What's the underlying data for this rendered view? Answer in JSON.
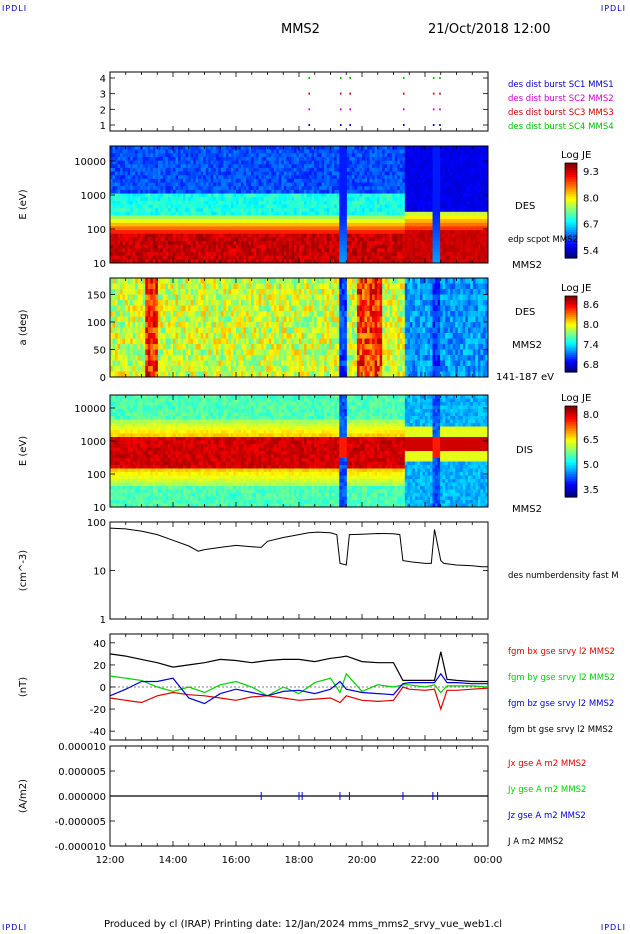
{
  "corners": {
    "tl": "IPDLI",
    "tr": "IPDLI",
    "bl": "IPDLI",
    "br": "IPDLI"
  },
  "header": {
    "spacecraft": "MMS2",
    "datetime": "21/Oct/2018 12:00"
  },
  "footer": "Produced by cl (IRAP)   Printing date: 12/Jan/2024   mms_mms2_srvy_vue_web1.cl",
  "colors": {
    "mms1": "#0000c8",
    "mms2": "#d000d0",
    "mms3": "#d00000",
    "mms4": "#00c000",
    "bx": "#e00000",
    "by": "#00d000",
    "bz": "#0000e0",
    "bt": "#000000"
  },
  "chart_data": [
    {
      "type": "scatter",
      "panel": "burst",
      "yticks": [
        "4",
        "3",
        "2",
        "1"
      ],
      "legend": [
        {
          "name": "des dist burst SC1 MMS1",
          "color": "#0000c8"
        },
        {
          "name": "des dist burst SC2 MMS2",
          "color": "#d000d0"
        },
        {
          "name": "des dist burst SC3 MMS3",
          "color": "#d00000"
        },
        {
          "name": "des dist burst SC4 MMS4",
          "color": "#00c000"
        }
      ],
      "x_hours": [
        18.3,
        19.3,
        19.6,
        21.3,
        22.25,
        22.45
      ],
      "levels": [
        4,
        3,
        2,
        1
      ]
    },
    {
      "type": "heatmap",
      "panel": "des_energy",
      "ylabel": "E (eV)",
      "yticks": [
        "10000",
        "1000",
        "100",
        "10"
      ],
      "colorbar": {
        "title": "Log JE",
        "ticks": [
          "9.3",
          "8.0",
          "6.7",
          "5.4"
        ]
      },
      "labels": [
        "DES",
        "edp scpot MMS2",
        "MMS2"
      ]
    },
    {
      "type": "heatmap",
      "panel": "des_pitch",
      "ylabel": "a (deg)",
      "yticks": [
        "150",
        "100",
        "50",
        "0"
      ],
      "colorbar": {
        "title": "Log JE",
        "ticks": [
          "8.6",
          "8.0",
          "7.4",
          "6.8"
        ]
      },
      "labels": [
        "DES",
        "MMS2",
        "141-187 eV"
      ]
    },
    {
      "type": "heatmap",
      "panel": "dis_energy",
      "ylabel": "E (eV)",
      "yticks": [
        "10000",
        "1000",
        "100",
        "10"
      ],
      "colorbar": {
        "title": "Log JE",
        "ticks": [
          "8.0",
          "6.5",
          "5.0",
          "3.5"
        ]
      },
      "labels": [
        "DIS",
        "MMS2"
      ]
    },
    {
      "type": "line",
      "panel": "density",
      "ylabel": "(cm^-3)",
      "yticks": [
        "100",
        "10",
        "1"
      ],
      "ylim": [
        1,
        100
      ],
      "legend": [
        {
          "name": "des numberdensity fast M",
          "color": "#000000"
        }
      ],
      "series": [
        {
          "x": [
            12,
            12.5,
            13,
            13.5,
            14,
            14.5,
            14.8,
            15,
            15.5,
            16,
            16.5,
            16.8,
            17,
            17.5,
            18,
            18.3,
            18.6,
            19,
            19.2,
            19.3,
            19.5,
            19.6,
            20,
            20.5,
            21,
            21.2,
            21.3,
            21.6,
            22,
            22.2,
            22.3,
            22.5,
            22.6,
            23,
            23.5,
            23.8,
            24
          ],
          "y": [
            75,
            72,
            65,
            55,
            42,
            32,
            25,
            27,
            30,
            33,
            31,
            30,
            40,
            48,
            55,
            60,
            62,
            60,
            55,
            14,
            13,
            55,
            56,
            58,
            57,
            55,
            16,
            15,
            14,
            14,
            70,
            16,
            14,
            13,
            12.5,
            12,
            12
          ]
        }
      ]
    },
    {
      "type": "line",
      "panel": "bfield",
      "ylabel": "(nT)",
      "yticks": [
        "40",
        "20",
        "0",
        "-20",
        "-40"
      ],
      "ylim": [
        -48,
        48
      ],
      "legend": [
        {
          "name": "fgm bx gse srvy l2 MMS2",
          "color": "#e00000"
        },
        {
          "name": "fgm by gse srvy l2 MMS2",
          "color": "#00d000"
        },
        {
          "name": "fgm bz gse srvy l2 MMS2",
          "color": "#0000e0"
        },
        {
          "name": "fgm bt gse srvy l2 MMS2",
          "color": "#000000"
        }
      ],
      "x": [
        12,
        12.5,
        13,
        13.5,
        14,
        14.5,
        15,
        15.5,
        16,
        16.5,
        17,
        17.5,
        18,
        18.5,
        19,
        19.3,
        19.5,
        20,
        20.5,
        21,
        21.3,
        21.5,
        22,
        22.3,
        22.5,
        22.7,
        23,
        23.5,
        24
      ],
      "series": [
        {
          "name": "bx",
          "values": [
            -10,
            -12,
            -14,
            -8,
            -5,
            -7,
            -8,
            -10,
            -12,
            -9,
            -8,
            -10,
            -12,
            -11,
            -10,
            -14,
            -8,
            -12,
            -13,
            -12,
            0,
            -2,
            -3,
            -2,
            -20,
            -3,
            -3,
            -2,
            -1
          ]
        },
        {
          "name": "by",
          "values": [
            10,
            8,
            6,
            0,
            -4,
            0,
            -5,
            2,
            5,
            0,
            -8,
            0,
            -6,
            4,
            8,
            -5,
            12,
            -4,
            2,
            0,
            2,
            2,
            0,
            2,
            -5,
            1,
            1,
            1,
            0
          ]
        },
        {
          "name": "bz",
          "values": [
            -8,
            -2,
            5,
            5,
            8,
            -10,
            -15,
            -6,
            -2,
            -5,
            -8,
            -4,
            -3,
            -6,
            -2,
            5,
            -2,
            -5,
            -6,
            -7,
            3,
            4,
            4,
            4,
            12,
            4,
            4,
            3,
            3
          ]
        },
        {
          "name": "bt",
          "values": [
            30,
            28,
            25,
            22,
            18,
            20,
            22,
            25,
            24,
            22,
            24,
            25,
            25,
            23,
            26,
            27,
            28,
            23,
            22,
            22,
            6,
            6,
            6,
            6,
            32,
            7,
            6,
            5,
            5
          ]
        }
      ]
    },
    {
      "type": "line",
      "panel": "current",
      "ylabel": "(A/m2)",
      "yticks": [
        "0.000010",
        "0.000005",
        "0.000000",
        "-0.000005",
        "-0.000010"
      ],
      "ylim": [
        -1e-05,
        1e-05
      ],
      "legend": [
        {
          "name": "Jx gse A m2 MMS2",
          "color": "#e00000"
        },
        {
          "name": "Jy gse A m2 MMS2",
          "color": "#00d000"
        },
        {
          "name": "Jz gse A m2 MMS2",
          "color": "#0000e0"
        },
        {
          "name": "J A m2 MMS2",
          "color": "#000000"
        }
      ],
      "spikes_x": [
        16.8,
        18,
        18.1,
        19.3,
        19.6,
        21.3,
        22.25,
        22.4
      ]
    }
  ],
  "time_axis": {
    "ticks": [
      "12:00",
      "14:00",
      "16:00",
      "18:00",
      "20:00",
      "22:00",
      "00:00"
    ],
    "range_hours": [
      12,
      24
    ]
  }
}
